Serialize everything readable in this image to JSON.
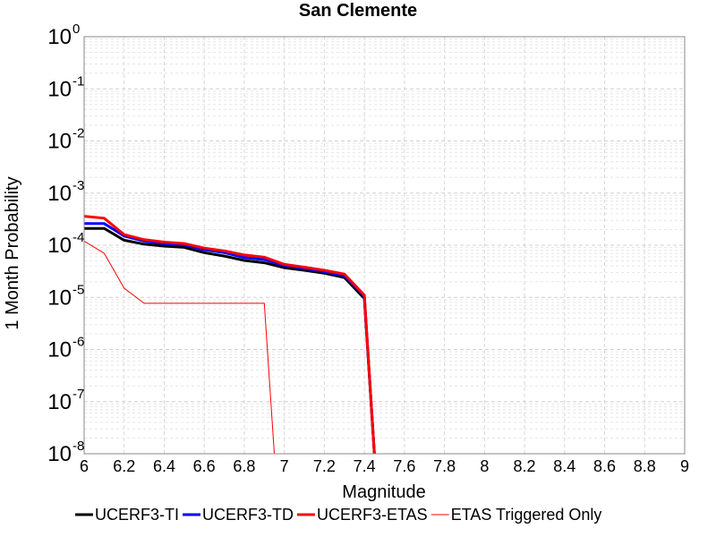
{
  "chart_data": {
    "type": "line",
    "title": "San Clemente",
    "xlabel": "Magnitude",
    "ylabel": "1 Month Probability",
    "xlim": [
      6,
      9
    ],
    "ylim": [
      1e-08,
      1
    ],
    "yscale": "log",
    "grid": true,
    "legend_position": "bottom",
    "x_ticks": [
      "6",
      "6.2",
      "6.4",
      "6.6",
      "6.8",
      "7",
      "7.2",
      "7.4",
      "7.6",
      "7.8",
      "8",
      "8.2",
      "8.4",
      "8.6",
      "8.8",
      "9"
    ],
    "y_ticks": [
      {
        "base": "10",
        "exp": "0"
      },
      {
        "base": "10",
        "exp": "-1"
      },
      {
        "base": "10",
        "exp": "-2"
      },
      {
        "base": "10",
        "exp": "-3"
      },
      {
        "base": "10",
        "exp": "-4"
      },
      {
        "base": "10",
        "exp": "-5"
      },
      {
        "base": "10",
        "exp": "-6"
      },
      {
        "base": "10",
        "exp": "-7"
      },
      {
        "base": "10",
        "exp": "-8"
      }
    ],
    "series": [
      {
        "name": "UCERF3-TI",
        "color": "#000000",
        "width": 3,
        "x": [
          6.0,
          6.1,
          6.2,
          6.3,
          6.4,
          6.5,
          6.6,
          6.7,
          6.8,
          6.9,
          7.0,
          7.1,
          7.2,
          7.3,
          7.4,
          7.45
        ],
        "y": [
          0.00021,
          0.00021,
          0.000125,
          0.000105,
          9.6e-05,
          9.1e-05,
          7.2e-05,
          6.2e-05,
          5.1e-05,
          4.6e-05,
          3.7e-05,
          3.3e-05,
          2.9e-05,
          2.4e-05,
          9.5e-06,
          0.0
        ]
      },
      {
        "name": "UCERF3-TD",
        "color": "#0000ff",
        "width": 3,
        "x": [
          6.0,
          6.1,
          6.2,
          6.3,
          6.4,
          6.5,
          6.6,
          6.7,
          6.8,
          6.9,
          7.0,
          7.1,
          7.2,
          7.3,
          7.4,
          7.45
        ],
        "y": [
          0.00026,
          0.00026,
          0.00015,
          0.00012,
          0.000108,
          0.000102,
          8.2e-05,
          7.2e-05,
          5.8e-05,
          5.3e-05,
          4.1e-05,
          3.6e-05,
          3.1e-05,
          2.6e-05,
          1.05e-05,
          0.0
        ]
      },
      {
        "name": "UCERF3-ETAS",
        "color": "#ff0000",
        "width": 3,
        "x": [
          6.0,
          6.1,
          6.2,
          6.3,
          6.4,
          6.5,
          6.6,
          6.7,
          6.8,
          6.9,
          7.0,
          7.1,
          7.2,
          7.3,
          7.4,
          7.45
        ],
        "y": [
          0.00036,
          0.00033,
          0.00016,
          0.000128,
          0.000115,
          0.000108,
          8.8e-05,
          7.8e-05,
          6.5e-05,
          5.9e-05,
          4.3e-05,
          3.8e-05,
          3.3e-05,
          2.8e-05,
          1.1e-05,
          0.0
        ]
      },
      {
        "name": "ETAS Triggered Only",
        "color": "#ff0000",
        "width": 1,
        "x": [
          6.0,
          6.1,
          6.2,
          6.3,
          6.4,
          6.5,
          6.6,
          6.7,
          6.8,
          6.9,
          6.95
        ],
        "y": [
          0.00012,
          7e-05,
          1.5e-05,
          7.7e-06,
          7.7e-06,
          7.7e-06,
          7.7e-06,
          7.7e-06,
          7.7e-06,
          7.7e-06,
          0.0
        ]
      }
    ]
  }
}
